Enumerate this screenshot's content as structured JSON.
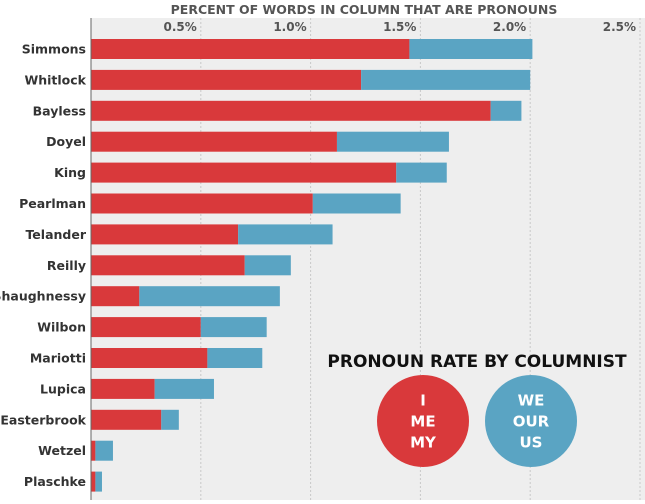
{
  "chart_data": {
    "type": "bar",
    "orientation": "horizontal",
    "stacked": true,
    "title": "PERCENT OF WORDS IN COLUMN THAT ARE PRONOUNS",
    "xlim": [
      0,
      2.5
    ],
    "xticks": [
      0.5,
      1.0,
      1.5,
      2.0,
      2.5
    ],
    "xtick_labels": [
      "0.5%",
      "1.0%",
      "1.5%",
      "2.0%",
      "2.5%"
    ],
    "categories": [
      "Simmons",
      "Whitlock",
      "Bayless",
      "Doyel",
      "King",
      "Pearlman",
      "Telander",
      "Reilly",
      "Shaughnessy",
      "Wilbon",
      "Mariotti",
      "Lupica",
      "Easterbrook",
      "Wetzel",
      "Plaschke"
    ],
    "series": [
      {
        "name": "I / ME / MY",
        "color": "#d9393b",
        "values": [
          1.45,
          1.23,
          1.82,
          1.12,
          1.39,
          1.01,
          0.67,
          0.7,
          0.22,
          0.5,
          0.53,
          0.29,
          0.32,
          0.02,
          0.02
        ]
      },
      {
        "name": "WE / OUR / US",
        "color": "#5aa4c3",
        "values": [
          0.56,
          0.77,
          0.14,
          0.51,
          0.23,
          0.4,
          0.43,
          0.21,
          0.64,
          0.3,
          0.25,
          0.27,
          0.08,
          0.08,
          0.03
        ]
      }
    ],
    "legend": {
      "title": "PRONOUN RATE BY COLUMNIST",
      "position": "bottom-right",
      "items": [
        {
          "words": [
            "I",
            "ME",
            "MY"
          ],
          "color": "#d9393b"
        },
        {
          "words": [
            "WE",
            "OUR",
            "US"
          ],
          "color": "#5aa4c3"
        }
      ]
    },
    "plot_background": "#eeeeee",
    "grid": true
  }
}
